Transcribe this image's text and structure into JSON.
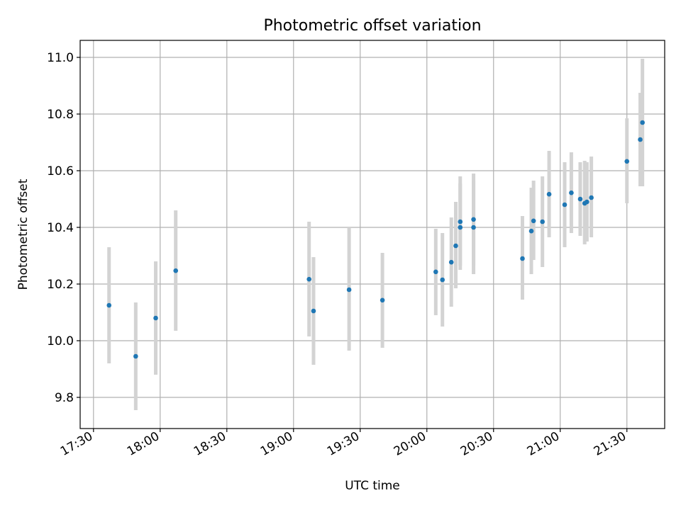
{
  "chart_data": {
    "type": "scatter",
    "title": "Photometric offset variation",
    "xlabel": "UTC time",
    "ylabel": "Photometric offset",
    "x_ticks": [
      "17:30",
      "18:00",
      "18:30",
      "19:00",
      "19:30",
      "20:00",
      "20:30",
      "21:00",
      "21:30"
    ],
    "y_ticks": [
      "9.8",
      "10.0",
      "10.2",
      "10.4",
      "10.6",
      "10.8",
      "11.0"
    ],
    "xlim": [
      "17:24",
      "21:47"
    ],
    "ylim": [
      9.69,
      11.06
    ],
    "grid": true,
    "errorbar_color": "#d3d3d3",
    "marker_color": "#1f77b4",
    "points": [
      {
        "x": "17:37",
        "y": 10.125,
        "lo": 9.92,
        "hi": 10.33
      },
      {
        "x": "17:49",
        "y": 9.945,
        "lo": 9.755,
        "hi": 10.135
      },
      {
        "x": "17:58",
        "y": 10.08,
        "lo": 9.88,
        "hi": 10.28
      },
      {
        "x": "18:07",
        "y": 10.247,
        "lo": 10.035,
        "hi": 10.46
      },
      {
        "x": "19:07",
        "y": 10.217,
        "lo": 10.015,
        "hi": 10.42
      },
      {
        "x": "19:09",
        "y": 10.105,
        "lo": 9.915,
        "hi": 10.295
      },
      {
        "x": "19:25",
        "y": 10.18,
        "lo": 9.965,
        "hi": 10.4
      },
      {
        "x": "19:40",
        "y": 10.143,
        "lo": 9.975,
        "hi": 10.31
      },
      {
        "x": "20:04",
        "y": 10.243,
        "lo": 10.09,
        "hi": 10.395
      },
      {
        "x": "20:07",
        "y": 10.215,
        "lo": 10.05,
        "hi": 10.38
      },
      {
        "x": "20:11",
        "y": 10.277,
        "lo": 10.12,
        "hi": 10.435
      },
      {
        "x": "20:13",
        "y": 10.335,
        "lo": 10.185,
        "hi": 10.49
      },
      {
        "x": "20:15",
        "y": 10.42,
        "lo": 10.265,
        "hi": 10.58
      },
      {
        "x": "20:15",
        "y": 10.4,
        "lo": 10.25,
        "hi": 10.555
      },
      {
        "x": "20:21",
        "y": 10.4,
        "lo": 10.235,
        "hi": 10.565
      },
      {
        "x": "20:21",
        "y": 10.428,
        "lo": 10.265,
        "hi": 10.59
      },
      {
        "x": "20:43",
        "y": 10.29,
        "lo": 10.145,
        "hi": 10.44
      },
      {
        "x": "20:47",
        "y": 10.387,
        "lo": 10.235,
        "hi": 10.54
      },
      {
        "x": "20:48",
        "y": 10.423,
        "lo": 10.285,
        "hi": 10.565
      },
      {
        "x": "20:52",
        "y": 10.42,
        "lo": 10.26,
        "hi": 10.58
      },
      {
        "x": "20:55",
        "y": 10.517,
        "lo": 10.365,
        "hi": 10.67
      },
      {
        "x": "21:02",
        "y": 10.48,
        "lo": 10.33,
        "hi": 10.63
      },
      {
        "x": "21:05",
        "y": 10.522,
        "lo": 10.38,
        "hi": 10.665
      },
      {
        "x": "21:09",
        "y": 10.5,
        "lo": 10.37,
        "hi": 10.63
      },
      {
        "x": "21:11",
        "y": 10.485,
        "lo": 10.34,
        "hi": 10.635
      },
      {
        "x": "21:12",
        "y": 10.49,
        "lo": 10.35,
        "hi": 10.63
      },
      {
        "x": "21:14",
        "y": 10.505,
        "lo": 10.365,
        "hi": 10.65
      },
      {
        "x": "21:30",
        "y": 10.633,
        "lo": 10.485,
        "hi": 10.785
      },
      {
        "x": "21:36",
        "y": 10.71,
        "lo": 10.545,
        "hi": 10.875
      },
      {
        "x": "21:37",
        "y": 10.77,
        "lo": 10.545,
        "hi": 10.995
      }
    ]
  }
}
